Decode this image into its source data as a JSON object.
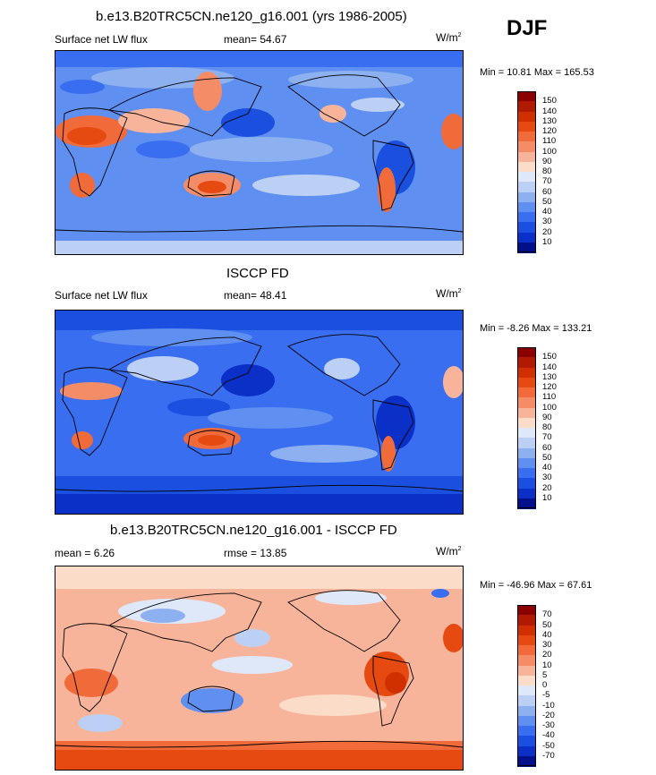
{
  "season": "DJF",
  "units_sup": "2",
  "panels": [
    {
      "title": "b.e13.B20TRC5CN.ne120_g16.001 (yrs 1986-2005)",
      "left_label": "Surface net LW flux",
      "mean_label": "mean=  54.67",
      "units": "W/m",
      "minmax": "Min =  10.81 Max = 165.53"
    },
    {
      "title": "ISCCP FD",
      "left_label": "Surface net LW flux",
      "mean_label": "mean=  48.41",
      "units": "W/m",
      "minmax": "Min =  -8.26 Max = 133.21"
    },
    {
      "title": "b.e13.B20TRC5CN.ne120_g16.001 - ISCCP FD",
      "left_label": "mean =   6.26",
      "mean_label": "rmse =  13.85",
      "units": "W/m",
      "minmax": "Min = -46.96 Max =  67.61"
    }
  ],
  "colorbars": {
    "absolute": {
      "labels": [
        "150",
        "140",
        "130",
        "120",
        "110",
        "100",
        "90",
        "80",
        "70",
        "60",
        "50",
        "40",
        "30",
        "20",
        "10"
      ],
      "colors": [
        "#8b0000",
        "#b01a00",
        "#d03000",
        "#e64a10",
        "#f06a3a",
        "#f58c68",
        "#f8b49a",
        "#fbdcc8",
        "#dfe8f8",
        "#bcd0f5",
        "#8db0f0",
        "#5f8ff0",
        "#3a6ef0",
        "#1a4fe0",
        "#0a30c8",
        "#00108a"
      ]
    },
    "difference": {
      "labels": [
        "70",
        "50",
        "40",
        "30",
        "20",
        "10",
        "5",
        "0",
        "-5",
        "-10",
        "-20",
        "-30",
        "-40",
        "-50",
        "-70"
      ],
      "colors": [
        "#8b0000",
        "#b01a00",
        "#d03000",
        "#e64a10",
        "#f06a3a",
        "#f58c68",
        "#f8b49a",
        "#fbdcc8",
        "#dfe8f8",
        "#bcd0f5",
        "#8db0f0",
        "#5f8ff0",
        "#3a6ef0",
        "#1a4fe0",
        "#0a30c8",
        "#00108a"
      ]
    }
  },
  "chart_data": [
    {
      "type": "heatmap",
      "title": "b.e13.B20TRC5CN.ne120_g16.001 (yrs 1986-2005)",
      "field": "Surface net LW flux",
      "units": "W/m2",
      "season": "DJF",
      "mean": 54.67,
      "min": 10.81,
      "max": 165.53,
      "contour_levels": [
        10,
        20,
        30,
        40,
        50,
        60,
        70,
        80,
        90,
        100,
        110,
        120,
        130,
        140,
        150
      ]
    },
    {
      "type": "heatmap",
      "title": "ISCCP FD",
      "field": "Surface net LW flux",
      "units": "W/m2",
      "season": "DJF",
      "mean": 48.41,
      "min": -8.26,
      "max": 133.21,
      "contour_levels": [
        10,
        20,
        30,
        40,
        50,
        60,
        70,
        80,
        90,
        100,
        110,
        120,
        130,
        140,
        150
      ]
    },
    {
      "type": "heatmap",
      "title": "b.e13.B20TRC5CN.ne120_g16.001 - ISCCP FD",
      "units": "W/m2",
      "season": "DJF",
      "mean": 6.26,
      "rmse": 13.85,
      "min": -46.96,
      "max": 67.61,
      "contour_levels": [
        -70,
        -50,
        -40,
        -30,
        -20,
        -10,
        -5,
        0,
        5,
        10,
        20,
        30,
        40,
        50,
        70
      ]
    }
  ]
}
